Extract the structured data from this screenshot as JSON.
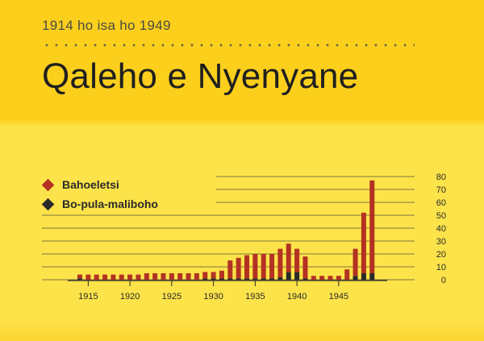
{
  "header": {
    "subtitle": "1914 ho isa ho 1949",
    "title": "Qaleho e Nyenyane"
  },
  "legend": [
    {
      "label": "Bahoeletsi",
      "color": "#b33222"
    },
    {
      "label": "Bo-pula-maliboho",
      "color": "#2a2a2a"
    }
  ],
  "colors": {
    "series_primary": "#b33222",
    "series_secondary": "#2a2a2a",
    "gridline": "#55523a"
  },
  "chart_data": {
    "type": "bar",
    "stacked": true,
    "title": "Qaleho e Nyenyane",
    "subtitle": "1914 ho isa ho 1949",
    "xlabel": "",
    "ylabel": "",
    "ylim": [
      0,
      80
    ],
    "y_ticks": [
      0,
      10,
      20,
      30,
      40,
      50,
      60,
      70,
      80
    ],
    "x_tick_labels": [
      "1915",
      "1920",
      "1925",
      "1930",
      "1935",
      "1940",
      "1945"
    ],
    "categories": [
      1914,
      1915,
      1916,
      1917,
      1918,
      1919,
      1920,
      1921,
      1922,
      1923,
      1924,
      1925,
      1926,
      1927,
      1928,
      1929,
      1930,
      1931,
      1932,
      1933,
      1934,
      1935,
      1936,
      1937,
      1938,
      1939,
      1940,
      1941,
      1942,
      1943,
      1944,
      1945,
      1946,
      1947,
      1948,
      1949
    ],
    "series": [
      {
        "name": "Bahoeletsi",
        "values": [
          3,
          4,
          4,
          4,
          4,
          4,
          4,
          4,
          5,
          5,
          5,
          5,
          5,
          5,
          5,
          5,
          5,
          6,
          14,
          16,
          18,
          19,
          19,
          19,
          22,
          22,
          18,
          17,
          3,
          3,
          3,
          3,
          8,
          21,
          47,
          72
        ]
      },
      {
        "name": "Bo-pula-maliboho",
        "values": [
          1,
          0,
          0,
          0,
          0,
          0,
          0,
          0,
          0,
          0,
          0,
          0,
          0,
          0,
          0,
          1,
          1,
          1,
          1,
          1,
          1,
          1,
          1,
          1,
          2,
          6,
          6,
          1,
          0,
          0,
          0,
          0,
          0,
          3,
          5,
          5
        ]
      }
    ]
  }
}
